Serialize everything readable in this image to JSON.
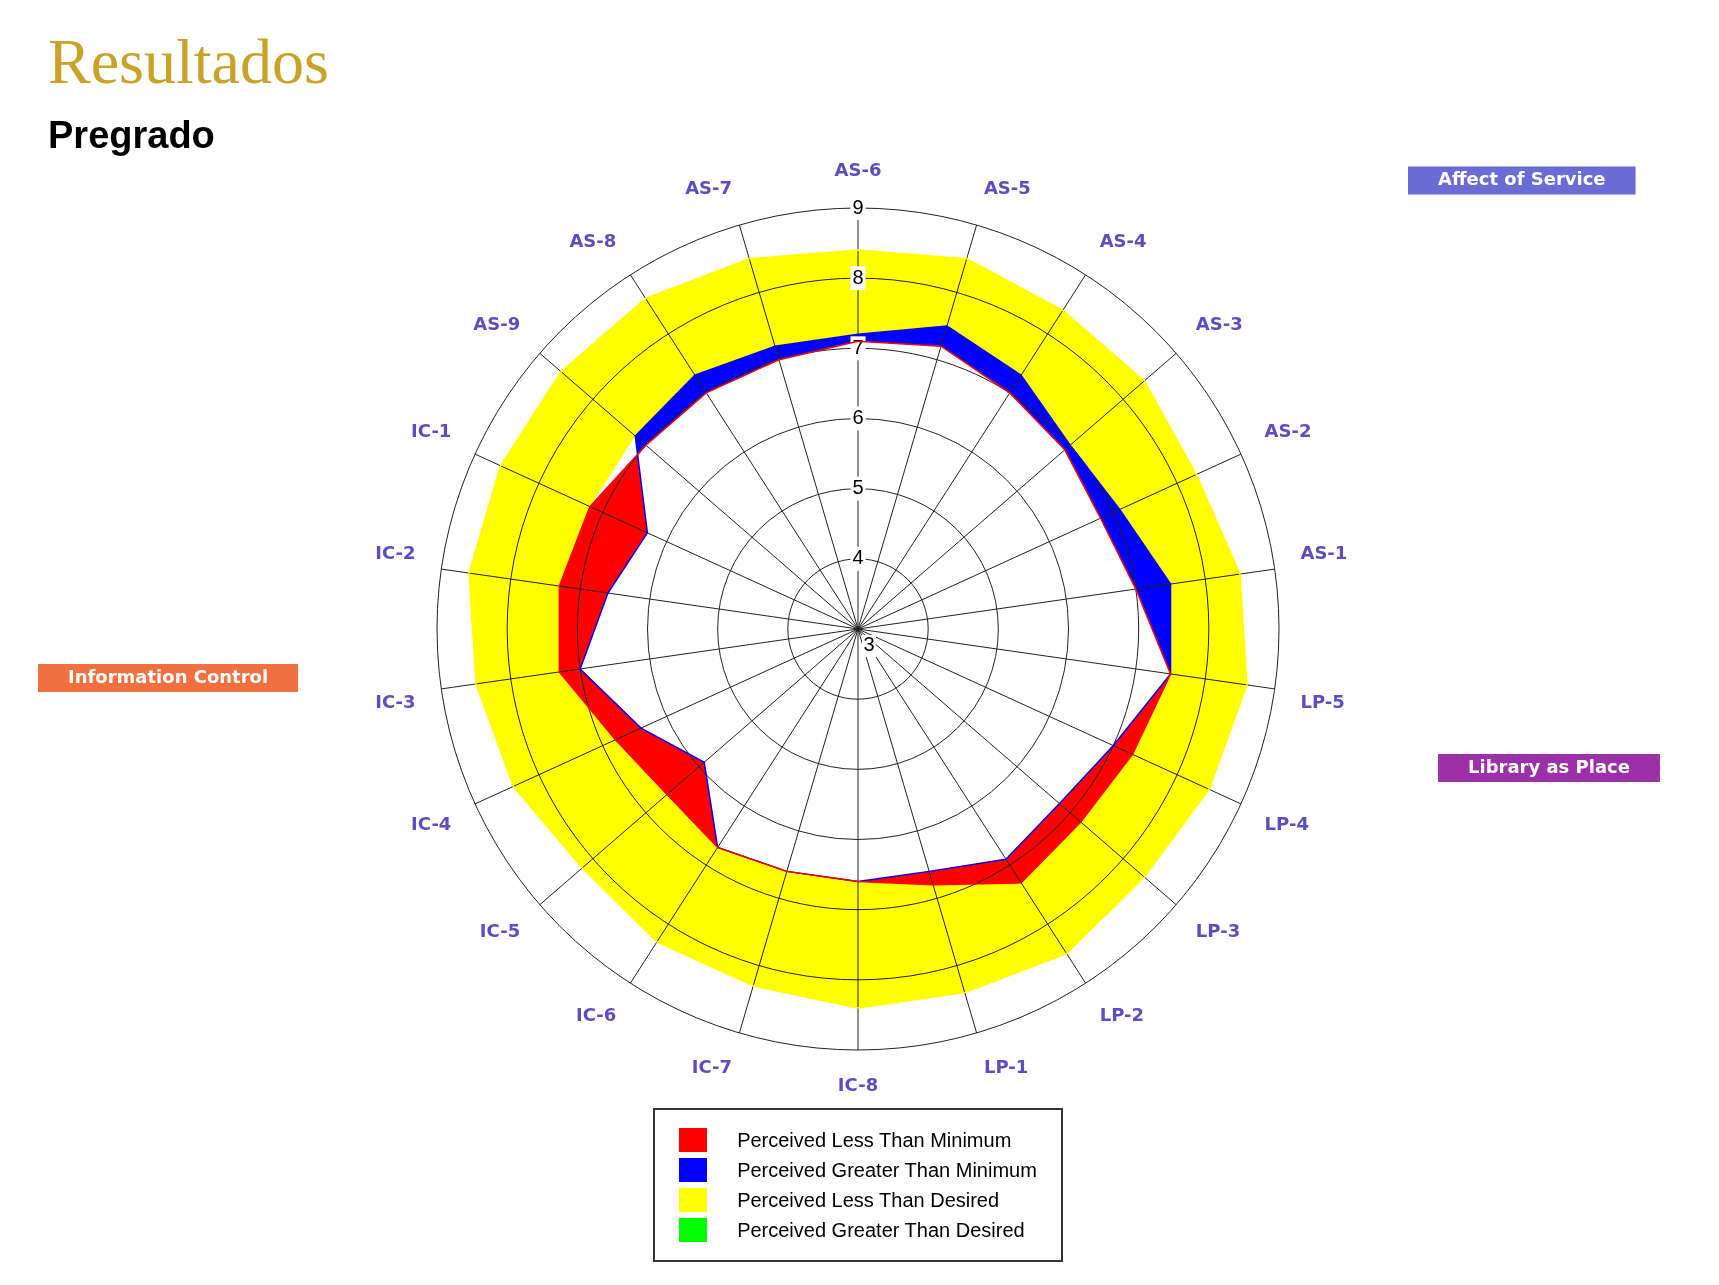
{
  "chart_data": {
    "type": "radar",
    "title": "Resultados",
    "subtitle": "Pregrado",
    "categories": [
      "AS-6",
      "AS-5",
      "AS-4",
      "AS-3",
      "AS-2",
      "AS-1",
      "LP-5",
      "LP-4",
      "LP-3",
      "LP-2",
      "LP-1",
      "IC-8",
      "IC-7",
      "IC-6",
      "IC-5",
      "IC-4",
      "IC-3",
      "IC-2",
      "IC-1",
      "AS-9",
      "AS-8",
      "AS-7"
    ],
    "series": [
      {
        "name": "Perceived Less Than Minimum",
        "color": "#ff0000",
        "values": [
          7.1,
          7.2,
          7.0,
          6.9,
          6.8,
          7.0,
          7.5,
          7.3,
          7.2,
          7.3,
          6.8,
          6.6,
          6.6,
          6.7,
          6.6,
          6.8,
          7.3,
          7.3,
          7.2,
          7.0,
          7.0,
          7.0
        ]
      },
      {
        "name": "Perceived Greater Than Minimum",
        "color": "#0000ff",
        "values": [
          7.2,
          7.5,
          7.3,
          7.0,
          7.1,
          7.5,
          7.5,
          7.0,
          6.8,
          6.9,
          6.6,
          6.6,
          6.6,
          6.7,
          5.9,
          6.4,
          7.0,
          6.6,
          6.3,
          7.2,
          7.3,
          7.2
        ]
      },
      {
        "name": "Perceived Less Than Desired",
        "color": "#ffff00",
        "values": [
          8.4,
          8.5,
          8.4,
          8.4,
          8.3,
          8.5,
          8.6,
          8.5,
          8.4,
          8.5,
          8.4,
          8.4,
          8.3,
          8.3,
          8.2,
          8.4,
          8.5,
          8.6,
          8.6,
          8.6,
          8.6,
          8.5
        ]
      },
      {
        "name": "Perceived Greater Than Desired",
        "color": "#00ff00",
        "values": [
          null,
          null,
          null,
          null,
          null,
          null,
          null,
          null,
          null,
          null,
          null,
          null,
          null,
          null,
          null,
          null,
          null,
          null,
          null,
          null,
          null,
          null
        ]
      }
    ],
    "ylim": [
      3,
      9
    ],
    "yticks": [
      3,
      4,
      5,
      6,
      7,
      8,
      9
    ],
    "grid": true,
    "legend": "bottom",
    "marker": "none",
    "annotations": [
      "Affect of Service",
      "Library as Place",
      "Information Control"
    ]
  }
}
